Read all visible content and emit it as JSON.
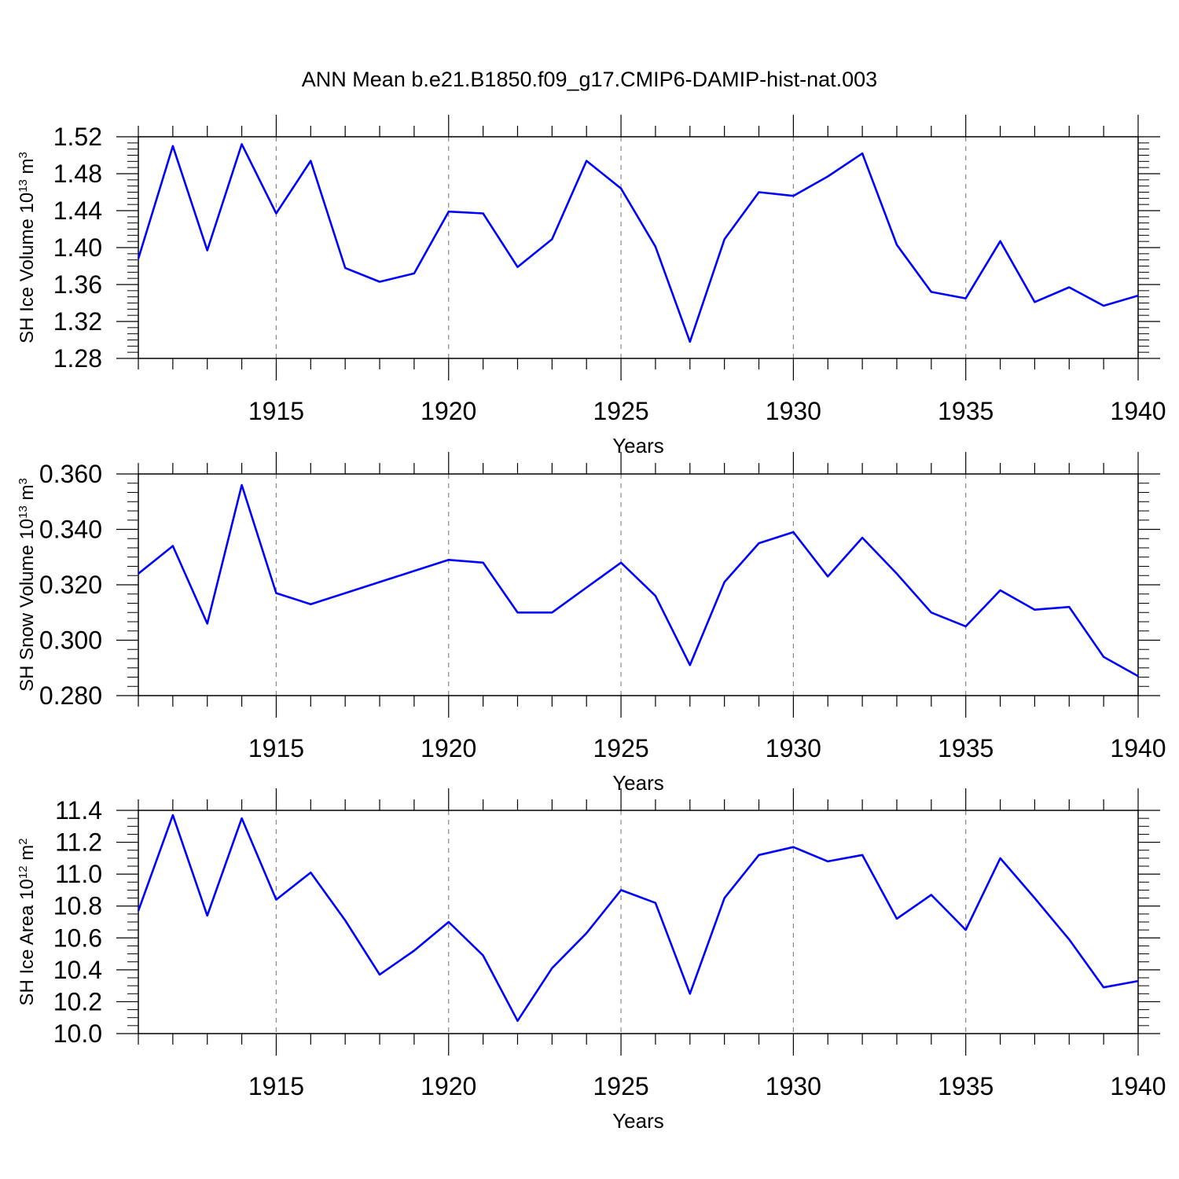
{
  "title": "ANN Mean b.e21.B1850.f09_g17.CMIP6-DAMIP-hist-nat.003",
  "line_color": "#0000ff",
  "chart_data": [
    {
      "type": "line",
      "ylabel": {
        "text": "SH Ice Volume 10",
        "exp": "13",
        "unit": " m",
        "unit_exp": "3"
      },
      "xlabel": "Years",
      "xlim": [
        1911,
        1940
      ],
      "ylim": [
        1.28,
        1.52
      ],
      "yticks": [
        "1.28",
        "1.32",
        "1.36",
        "1.40",
        "1.44",
        "1.48",
        "1.52"
      ],
      "xticks": [
        "1915",
        "1920",
        "1925",
        "1930",
        "1935",
        "1940"
      ],
      "x": [
        1911,
        1912,
        1913,
        1914,
        1915,
        1916,
        1917,
        1918,
        1919,
        1920,
        1921,
        1922,
        1923,
        1924,
        1925,
        1926,
        1927,
        1928,
        1929,
        1930,
        1931,
        1932,
        1933,
        1934,
        1935,
        1936,
        1937,
        1938,
        1939,
        1940
      ],
      "series": [
        {
          "values": [
            1.388,
            1.51,
            1.397,
            1.512,
            1.437,
            1.494,
            1.378,
            1.363,
            1.372,
            1.439,
            1.437,
            1.379,
            1.409,
            1.494,
            1.464,
            1.401,
            1.298,
            1.409,
            1.46,
            1.456,
            1.477,
            1.502,
            1.403,
            1.352,
            1.345,
            1.407,
            1.341,
            1.357,
            1.337,
            1.348
          ]
        }
      ]
    },
    {
      "type": "line",
      "ylabel": {
        "text": "SH Snow Volume 10",
        "exp": "13",
        "unit": " m",
        "unit_exp": "3"
      },
      "xlabel": "Years",
      "xlim": [
        1911,
        1940
      ],
      "ylim": [
        0.28,
        0.36
      ],
      "yticks": [
        "0.280",
        "0.300",
        "0.320",
        "0.340",
        "0.360"
      ],
      "xticks": [
        "1915",
        "1920",
        "1925",
        "1930",
        "1935",
        "1940"
      ],
      "x": [
        1911,
        1912,
        1913,
        1914,
        1915,
        1916,
        1917,
        1918,
        1919,
        1920,
        1921,
        1922,
        1923,
        1924,
        1925,
        1926,
        1927,
        1928,
        1929,
        1930,
        1931,
        1932,
        1933,
        1934,
        1935,
        1936,
        1937,
        1938,
        1939,
        1940
      ],
      "series": [
        {
          "values": [
            0.324,
            0.334,
            0.306,
            0.356,
            0.317,
            0.313,
            0.317,
            0.321,
            0.325,
            0.329,
            0.328,
            0.31,
            0.31,
            0.319,
            0.328,
            0.316,
            0.291,
            0.321,
            0.335,
            0.339,
            0.323,
            0.337,
            0.324,
            0.31,
            0.305,
            0.318,
            0.311,
            0.312,
            0.294,
            0.287
          ]
        }
      ]
    },
    {
      "type": "line",
      "ylabel": {
        "text": "SH Ice Area 10",
        "exp": "12",
        "unit": " m",
        "unit_exp": "2"
      },
      "xlabel": "Years",
      "xlim": [
        1911,
        1940
      ],
      "ylim": [
        10.0,
        11.4
      ],
      "yticks": [
        "10.0",
        "10.2",
        "10.4",
        "10.6",
        "10.8",
        "11.0",
        "11.2",
        "11.4"
      ],
      "xticks": [
        "1915",
        "1920",
        "1925",
        "1930",
        "1935",
        "1940"
      ],
      "x": [
        1911,
        1912,
        1913,
        1914,
        1915,
        1916,
        1917,
        1918,
        1919,
        1920,
        1921,
        1922,
        1923,
        1924,
        1925,
        1926,
        1927,
        1928,
        1929,
        1930,
        1931,
        1932,
        1933,
        1934,
        1935,
        1936,
        1937,
        1938,
        1939,
        1940
      ],
      "series": [
        {
          "values": [
            10.77,
            11.37,
            10.74,
            11.35,
            10.84,
            11.01,
            10.71,
            10.37,
            10.52,
            10.7,
            10.49,
            10.08,
            10.41,
            10.63,
            10.9,
            10.82,
            10.25,
            10.85,
            11.12,
            11.17,
            11.08,
            11.12,
            10.72,
            10.87,
            10.65,
            11.1,
            10.85,
            10.59,
            10.29,
            10.33
          ]
        }
      ]
    }
  ]
}
